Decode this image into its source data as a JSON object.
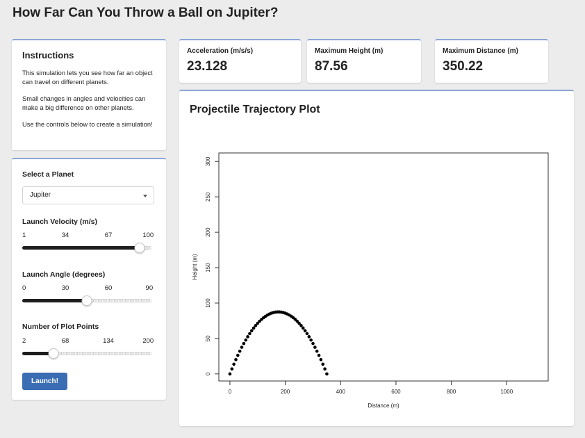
{
  "page": {
    "title": "How Far Can You Throw a Ball on Jupiter?"
  },
  "instructions": {
    "heading": "Instructions",
    "paragraphs": [
      "This simulation lets you see how far an object can travel on different planets.",
      "Small changes in angles and velocities can make a big difference on other planets.",
      "Use the controls below to create a simulation!"
    ]
  },
  "controls": {
    "planet_label": "Select a Planet",
    "planet_value": "Jupiter",
    "velocity": {
      "label": "Launch Velocity (m/s)",
      "ticks": [
        "1",
        "34",
        "67",
        "100"
      ],
      "min": 1,
      "max": 100,
      "value": 91
    },
    "angle": {
      "label": "Launch Angle (degrees)",
      "ticks": [
        "0",
        "30",
        "60",
        "90"
      ],
      "min": 0,
      "max": 90,
      "value": 45
    },
    "points": {
      "label": "Number of Plot Points",
      "ticks": [
        "2",
        "68",
        "134",
        "200"
      ],
      "min": 2,
      "max": 200,
      "value": 50
    },
    "launch_label": "Launch!"
  },
  "stats": {
    "acceleration": {
      "label": "Acceleration (m/s/s)",
      "value": "23.128"
    },
    "max_height": {
      "label": "Maximum Height (m)",
      "value": "87.56"
    },
    "max_distance": {
      "label": "Maximum Distance (m)",
      "value": "350.22"
    }
  },
  "plot": {
    "title": "Projectile Trajectory Plot"
  },
  "chart_data": {
    "type": "scatter",
    "title": "",
    "xlabel": "Distance (m)",
    "ylabel": "Height (m)",
    "xlim": [
      -40,
      1150
    ],
    "ylim": [
      -10,
      312
    ],
    "xticks": [
      0,
      200,
      400,
      600,
      800,
      1000
    ],
    "yticks": [
      0,
      50,
      100,
      150,
      200,
      250,
      300
    ],
    "grid": false,
    "max_height": 87.56,
    "max_distance": 350.22,
    "num_points": 50
  }
}
